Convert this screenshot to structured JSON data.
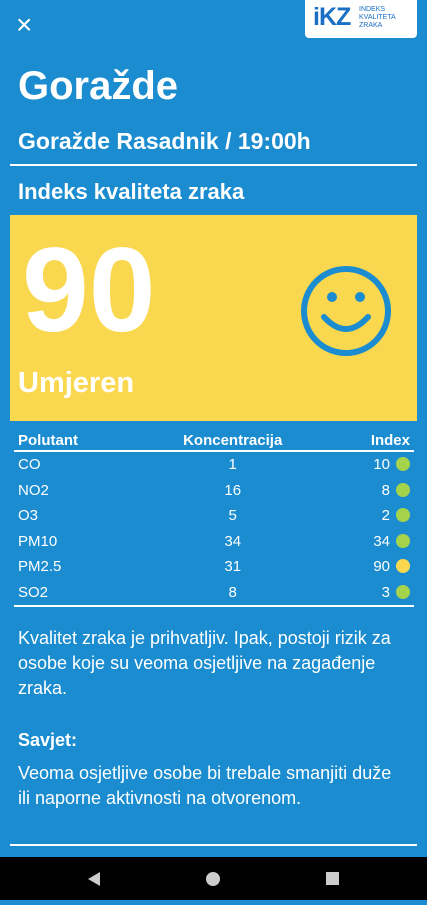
{
  "header": {
    "close": "×",
    "logo": {
      "mark": "iKZ",
      "text": [
        "INDEKS",
        "KVALITETA",
        "ZRAKA"
      ]
    }
  },
  "location": {
    "city": "Goražde",
    "station": "Goražde Rasadnik / 19:00h"
  },
  "index": {
    "title": "Indeks kvaliteta zraka",
    "value": 90,
    "category": "Umjeren",
    "color": "#f9d84f"
  },
  "table": {
    "columns": [
      "Polutant",
      "Koncentracija",
      "Index"
    ],
    "rows": [
      {
        "pollutant": "CO",
        "concentration": 1,
        "index": 10,
        "color": "#a5d34b"
      },
      {
        "pollutant": "NO2",
        "concentration": 16,
        "index": 8,
        "color": "#a5d34b"
      },
      {
        "pollutant": "O3",
        "concentration": 5,
        "index": 2,
        "color": "#a5d34b"
      },
      {
        "pollutant": "PM10",
        "concentration": 34,
        "index": 34,
        "color": "#a5d34b"
      },
      {
        "pollutant": "PM2.5",
        "concentration": 31,
        "index": 90,
        "color": "#f9d84f"
      },
      {
        "pollutant": "SO2",
        "concentration": 8,
        "index": 3,
        "color": "#a5d34b"
      }
    ]
  },
  "description": "Kvalitet zraka je prihvatljiv. Ipak, postoji rizik za osobe koje su veoma osjetljive na zagađenje zraka.",
  "advice": {
    "title": "Savjet:",
    "text": "Veoma osjetljive osobe bi trebale smanjiti duže ili naporne aktivnosti na otvorenom."
  }
}
